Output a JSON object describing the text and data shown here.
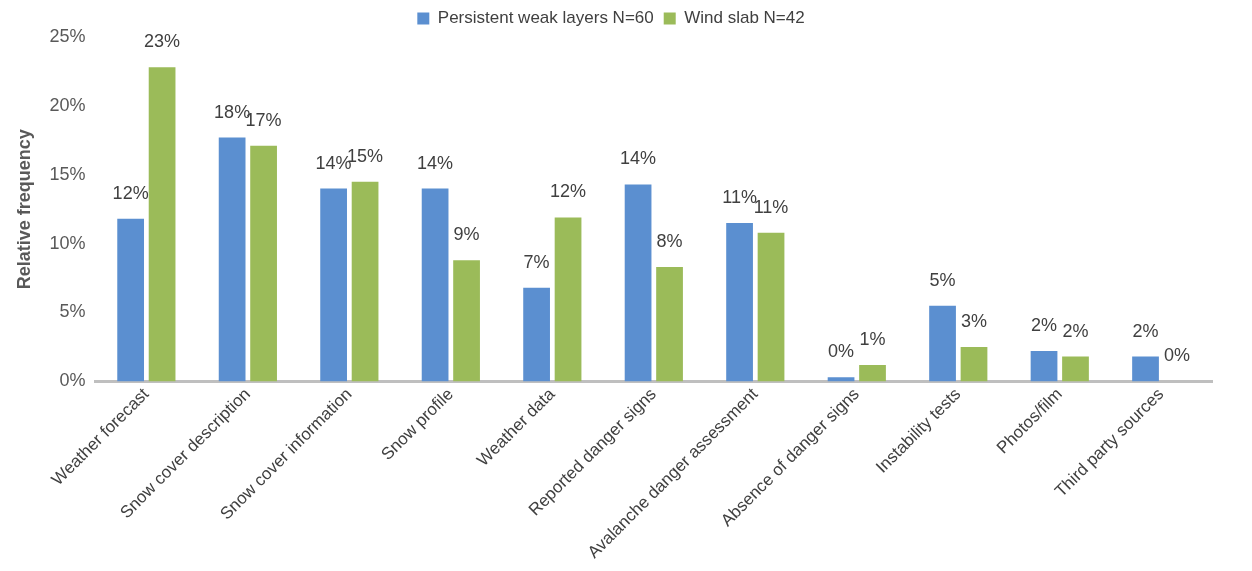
{
  "chart_data": {
    "type": "bar",
    "ylabel": "Relative frequency",
    "categories": [
      "Weather forecast",
      "Snow cover description",
      "Snow cover information",
      "Snow profile",
      "Weather data",
      "Reported danger signs",
      "Avalanche danger assessment",
      "Absence of danger signs",
      "Instability tests",
      "Photos/film",
      "Third party sources"
    ],
    "series": [
      {
        "name": "Persistent weak layers N=60",
        "color": "#5b8fd0",
        "values": [
          11.8,
          17.7,
          14.0,
          14.0,
          6.8,
          14.3,
          11.5,
          0.3,
          5.5,
          2.2,
          1.8
        ],
        "value_labels": [
          "12%",
          "18%",
          "14%",
          "14%",
          "7%",
          "14%",
          "11%",
          "0%",
          "5%",
          "2%",
          "2%"
        ]
      },
      {
        "name": "Wind slab N=42",
        "color": "#9bbb59",
        "values": [
          22.8,
          17.1,
          14.5,
          8.8,
          11.9,
          8.3,
          10.8,
          1.2,
          2.5,
          1.8,
          0
        ],
        "value_labels": [
          "23%",
          "17%",
          "15%",
          "9%",
          "12%",
          "8%",
          "11%",
          "1%",
          "3%",
          "2%",
          "0%"
        ]
      }
    ],
    "ylim": [
      0,
      25
    ],
    "yticks": [
      {
        "value": 0,
        "label": "0%"
      },
      {
        "value": 5,
        "label": "5%"
      },
      {
        "value": 10,
        "label": "10%"
      },
      {
        "value": 15,
        "label": "15%"
      },
      {
        "value": 20,
        "label": "20%"
      },
      {
        "value": 25,
        "label": "25%"
      }
    ],
    "grid": false,
    "legend": "top"
  }
}
